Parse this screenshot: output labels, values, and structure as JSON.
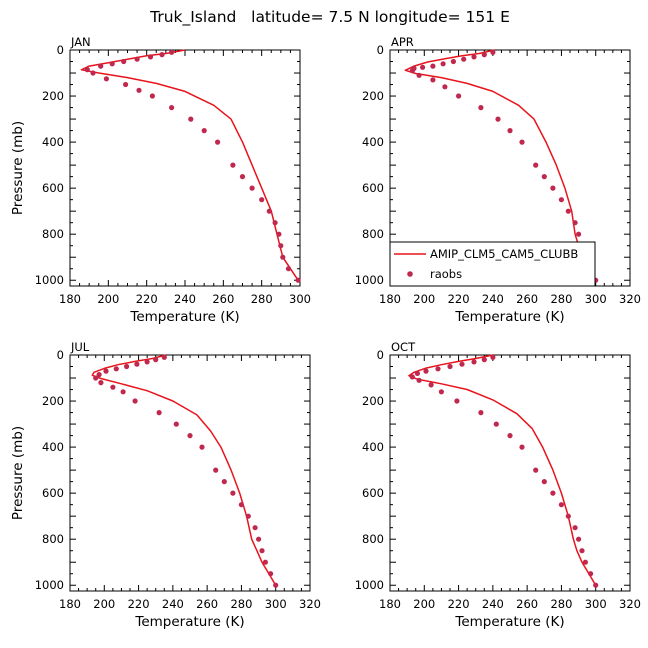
{
  "title": "Truk_Island   latitude= 7.5 N longitude= 151 E",
  "colors": {
    "model": "#e8141c",
    "obs": "#c0284e"
  },
  "legend": {
    "model_label": "AMIP_CLM5_CAM5_CLUBB",
    "obs_label": "raobs"
  },
  "chart_data": [
    {
      "type": "line",
      "panel": "JAN",
      "xlabel": "Temperature (K)",
      "ylabel": "Pressure (mb)",
      "xlim": [
        180,
        300
      ],
      "ylim": [
        1025,
        0
      ],
      "xticks": [
        180,
        200,
        220,
        240,
        260,
        280,
        300
      ],
      "yticks": [
        0,
        200,
        400,
        600,
        800,
        1000
      ],
      "series": [
        {
          "kind": "model",
          "points": [
            [
              240,
              0
            ],
            [
              230,
              15
            ],
            [
              220,
              25
            ],
            [
              210,
              40
            ],
            [
              200,
              55
            ],
            [
              190,
              70
            ],
            [
              186,
              86
            ],
            [
              195,
              100
            ],
            [
              210,
              120
            ],
            [
              225,
              145
            ],
            [
              240,
              180
            ],
            [
              255,
              240
            ],
            [
              264,
              300
            ],
            [
              270,
              400
            ],
            [
              275,
              500
            ],
            [
              280,
              600
            ],
            [
              285,
              700
            ],
            [
              288,
              800
            ],
            [
              291,
              900
            ],
            [
              295,
              950
            ],
            [
              299,
              1000
            ]
          ]
        },
        {
          "kind": "obs",
          "points": [
            [
              233,
              10
            ],
            [
              228,
              20
            ],
            [
              222,
              30
            ],
            [
              215,
              40
            ],
            [
              208,
              50
            ],
            [
              202,
              60
            ],
            [
              196,
              70
            ],
            [
              189,
              85
            ],
            [
              192,
              100
            ],
            [
              199,
              125
            ],
            [
              209,
              150
            ],
            [
              216,
              175
            ],
            [
              223,
              200
            ],
            [
              233,
              250
            ],
            [
              243,
              300
            ],
            [
              250,
              350
            ],
            [
              257,
              400
            ],
            [
              265,
              500
            ],
            [
              270,
              550
            ],
            [
              275,
              600
            ],
            [
              280,
              650
            ],
            [
              284,
              700
            ],
            [
              287,
              750
            ],
            [
              289,
              800
            ],
            [
              290,
              850
            ],
            [
              291,
              900
            ],
            [
              294,
              950
            ],
            [
              299,
              1000
            ]
          ]
        }
      ]
    },
    {
      "type": "line",
      "panel": "APR",
      "xlabel": "Temperature (K)",
      "ylabel": "",
      "xlim": [
        180,
        320
      ],
      "ylim": [
        1025,
        0
      ],
      "xticks": [
        180,
        200,
        220,
        240,
        260,
        280,
        300,
        320
      ],
      "yticks": [
        0,
        200,
        400,
        600,
        800,
        1000
      ],
      "series": [
        {
          "kind": "model",
          "points": [
            [
              241,
              0
            ],
            [
              232,
              15
            ],
            [
              222,
              25
            ],
            [
              212,
              38
            ],
            [
              202,
              52
            ],
            [
              194,
              70
            ],
            [
              189,
              88
            ],
            [
              195,
              102
            ],
            [
              210,
              120
            ],
            [
              225,
              145
            ],
            [
              240,
              180
            ],
            [
              255,
              240
            ],
            [
              264,
              300
            ],
            [
              271,
              400
            ],
            [
              277,
              500
            ],
            [
              282,
              600
            ],
            [
              286,
              700
            ],
            [
              288,
              800
            ],
            [
              290,
              850
            ],
            [
              293,
              900
            ],
            [
              296,
              950
            ],
            [
              300,
              1000
            ]
          ]
        },
        {
          "kind": "obs",
          "points": [
            [
              240,
              10
            ],
            [
              235,
              20
            ],
            [
              229,
              30
            ],
            [
              223,
              40
            ],
            [
              217,
              50
            ],
            [
              211,
              60
            ],
            [
              205,
              70
            ],
            [
              199,
              75
            ],
            [
              194,
              80
            ],
            [
              193,
              90
            ],
            [
              197,
              110
            ],
            [
              205,
              130
            ],
            [
              212,
              160
            ],
            [
              220,
              200
            ],
            [
              233,
              250
            ],
            [
              243,
              300
            ],
            [
              250,
              350
            ],
            [
              257,
              400
            ],
            [
              265,
              500
            ],
            [
              270,
              550
            ],
            [
              275,
              600
            ],
            [
              280,
              650
            ],
            [
              284,
              700
            ],
            [
              288,
              750
            ],
            [
              290,
              800
            ],
            [
              291,
              850
            ],
            [
              293,
              900
            ],
            [
              296,
              950
            ],
            [
              300,
              1000
            ]
          ]
        }
      ]
    },
    {
      "type": "line",
      "panel": "JUL",
      "xlabel": "Temperature (K)",
      "ylabel": "Pressure (mb)",
      "xlim": [
        180,
        320
      ],
      "ylim": [
        1025,
        0
      ],
      "xticks": [
        180,
        200,
        220,
        240,
        260,
        280,
        300,
        320
      ],
      "yticks": [
        0,
        200,
        400,
        600,
        800,
        1000
      ],
      "series": [
        {
          "kind": "model",
          "points": [
            [
              236,
              0
            ],
            [
              228,
              15
            ],
            [
              218,
              28
            ],
            [
              208,
              42
            ],
            [
              200,
              58
            ],
            [
              194,
              75
            ],
            [
              193,
              88
            ],
            [
              198,
              102
            ],
            [
              210,
              125
            ],
            [
              225,
              155
            ],
            [
              240,
              200
            ],
            [
              254,
              260
            ],
            [
              262,
              330
            ],
            [
              268,
              400
            ],
            [
              274,
              500
            ],
            [
              279,
              600
            ],
            [
              283,
              700
            ],
            [
              286,
              800
            ],
            [
              289,
              850
            ],
            [
              292,
              900
            ],
            [
              296,
              950
            ],
            [
              300,
              1000
            ]
          ]
        },
        {
          "kind": "obs",
          "points": [
            [
              235,
              10
            ],
            [
              230,
              20
            ],
            [
              225,
              30
            ],
            [
              219,
              40
            ],
            [
              213,
              50
            ],
            [
              207,
              60
            ],
            [
              201,
              70
            ],
            [
              197,
              85
            ],
            [
              195,
              100
            ],
            [
              198,
              120
            ],
            [
              205,
              140
            ],
            [
              211,
              160
            ],
            [
              218,
              200
            ],
            [
              232,
              250
            ],
            [
              242,
              300
            ],
            [
              250,
              350
            ],
            [
              257,
              400
            ],
            [
              265,
              500
            ],
            [
              270,
              550
            ],
            [
              275,
              600
            ],
            [
              280,
              650
            ],
            [
              284,
              700
            ],
            [
              288,
              750
            ],
            [
              290,
              800
            ],
            [
              292,
              850
            ],
            [
              294,
              900
            ],
            [
              297,
              950
            ],
            [
              300,
              1000
            ]
          ]
        }
      ]
    },
    {
      "type": "line",
      "panel": "OCT",
      "xlabel": "Temperature (K)",
      "ylabel": "",
      "xlim": [
        180,
        320
      ],
      "ylim": [
        1025,
        0
      ],
      "xticks": [
        180,
        200,
        220,
        240,
        260,
        280,
        300,
        320
      ],
      "yticks": [
        0,
        200,
        400,
        600,
        800,
        1000
      ],
      "series": [
        {
          "kind": "model",
          "points": [
            [
              240,
              0
            ],
            [
              230,
              15
            ],
            [
              220,
              28
            ],
            [
              210,
              42
            ],
            [
              201,
              57
            ],
            [
              194,
              75
            ],
            [
              191,
              90
            ],
            [
              196,
              105
            ],
            [
              210,
              125
            ],
            [
              225,
              150
            ],
            [
              240,
              195
            ],
            [
              254,
              255
            ],
            [
              263,
              320
            ],
            [
              269,
              400
            ],
            [
              275,
              500
            ],
            [
              280,
              600
            ],
            [
              284,
              700
            ],
            [
              287,
              800
            ],
            [
              289,
              850
            ],
            [
              292,
              900
            ],
            [
              296,
              950
            ],
            [
              300,
              1000
            ]
          ]
        },
        {
          "kind": "obs",
          "points": [
            [
              240,
              10
            ],
            [
              235,
              20
            ],
            [
              229,
              30
            ],
            [
              222,
              40
            ],
            [
              215,
              50
            ],
            [
              208,
              60
            ],
            [
              201,
              70
            ],
            [
              196,
              80
            ],
            [
              193,
              95
            ],
            [
              197,
              110
            ],
            [
              204,
              130
            ],
            [
              210,
              160
            ],
            [
              219,
              200
            ],
            [
              233,
              250
            ],
            [
              242,
              300
            ],
            [
              250,
              350
            ],
            [
              257,
              400
            ],
            [
              265,
              500
            ],
            [
              270,
              550
            ],
            [
              275,
              600
            ],
            [
              280,
              650
            ],
            [
              284,
              700
            ],
            [
              288,
              750
            ],
            [
              290,
              800
            ],
            [
              292,
              850
            ],
            [
              294,
              900
            ],
            [
              297,
              950
            ],
            [
              300,
              1000
            ]
          ]
        }
      ]
    }
  ]
}
